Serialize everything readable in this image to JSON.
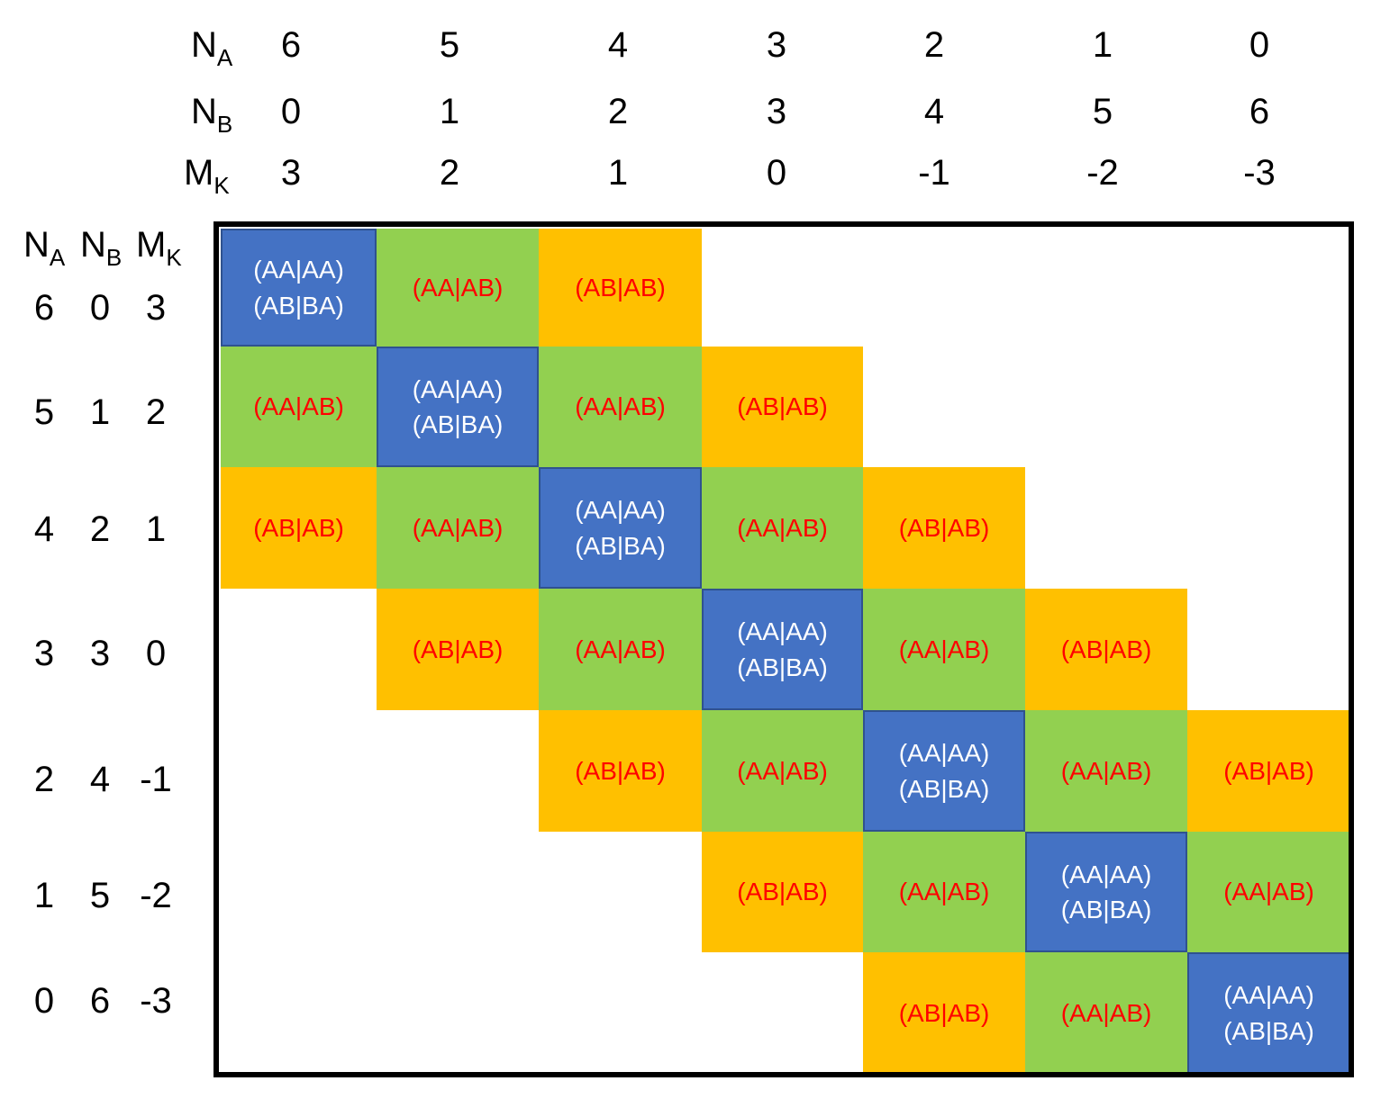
{
  "colors": {
    "diagonal": "#4472c4",
    "first_off_diagonal": "#92d050",
    "second_off_diagonal": "#ffc000",
    "diagonal_text": "#ffffff",
    "off_diagonal_text": "#ff0000"
  },
  "column_header": {
    "labels": [
      {
        "base": "N",
        "sub": "A"
      },
      {
        "base": "N",
        "sub": "B"
      },
      {
        "base": "M",
        "sub": "K"
      }
    ],
    "N_A": [
      "6",
      "5",
      "4",
      "3",
      "2",
      "1",
      "0"
    ],
    "N_B": [
      "0",
      "1",
      "2",
      "3",
      "4",
      "5",
      "6"
    ],
    "M_K": [
      "3",
      "2",
      "1",
      "0",
      "-1",
      "-2",
      "-3"
    ]
  },
  "row_header": {
    "labels": [
      {
        "base": "N",
        "sub": "A"
      },
      {
        "base": "N",
        "sub": "B"
      },
      {
        "base": "M",
        "sub": "K"
      }
    ],
    "rows": [
      {
        "N_A": "6",
        "N_B": "0",
        "M_K": "3"
      },
      {
        "N_A": "5",
        "N_B": "1",
        "M_K": "2"
      },
      {
        "N_A": "4",
        "N_B": "2",
        "M_K": "1"
      },
      {
        "N_A": "3",
        "N_B": "3",
        "M_K": "0"
      },
      {
        "N_A": "2",
        "N_B": "4",
        "M_K": "-1"
      },
      {
        "N_A": "1",
        "N_B": "5",
        "M_K": "-2"
      },
      {
        "N_A": "0",
        "N_B": "6",
        "M_K": "-3"
      }
    ]
  },
  "block_labels": {
    "diagonal": [
      "(AA|AA)",
      "(AB|BA)"
    ],
    "first_off_diagonal": [
      "(AA|AB)"
    ],
    "second_off_diagonal": [
      "(AB|AB)"
    ]
  },
  "blocks": [
    {
      "row": 0,
      "col": 0,
      "kind": "diagonal"
    },
    {
      "row": 0,
      "col": 1,
      "kind": "first_off_diagonal"
    },
    {
      "row": 0,
      "col": 2,
      "kind": "second_off_diagonal"
    },
    {
      "row": 1,
      "col": 0,
      "kind": "first_off_diagonal"
    },
    {
      "row": 1,
      "col": 1,
      "kind": "diagonal"
    },
    {
      "row": 1,
      "col": 2,
      "kind": "first_off_diagonal"
    },
    {
      "row": 1,
      "col": 3,
      "kind": "second_off_diagonal"
    },
    {
      "row": 2,
      "col": 0,
      "kind": "second_off_diagonal"
    },
    {
      "row": 2,
      "col": 1,
      "kind": "first_off_diagonal"
    },
    {
      "row": 2,
      "col": 2,
      "kind": "diagonal"
    },
    {
      "row": 2,
      "col": 3,
      "kind": "first_off_diagonal"
    },
    {
      "row": 2,
      "col": 4,
      "kind": "second_off_diagonal"
    },
    {
      "row": 3,
      "col": 1,
      "kind": "second_off_diagonal"
    },
    {
      "row": 3,
      "col": 2,
      "kind": "first_off_diagonal"
    },
    {
      "row": 3,
      "col": 3,
      "kind": "diagonal"
    },
    {
      "row": 3,
      "col": 4,
      "kind": "first_off_diagonal"
    },
    {
      "row": 3,
      "col": 5,
      "kind": "second_off_diagonal"
    },
    {
      "row": 4,
      "col": 2,
      "kind": "second_off_diagonal"
    },
    {
      "row": 4,
      "col": 3,
      "kind": "first_off_diagonal"
    },
    {
      "row": 4,
      "col": 4,
      "kind": "diagonal"
    },
    {
      "row": 4,
      "col": 5,
      "kind": "first_off_diagonal"
    },
    {
      "row": 4,
      "col": 6,
      "kind": "second_off_diagonal"
    },
    {
      "row": 5,
      "col": 3,
      "kind": "second_off_diagonal"
    },
    {
      "row": 5,
      "col": 4,
      "kind": "first_off_diagonal"
    },
    {
      "row": 5,
      "col": 5,
      "kind": "diagonal"
    },
    {
      "row": 5,
      "col": 6,
      "kind": "first_off_diagonal"
    },
    {
      "row": 6,
      "col": 4,
      "kind": "second_off_diagonal"
    },
    {
      "row": 6,
      "col": 5,
      "kind": "first_off_diagonal"
    },
    {
      "row": 6,
      "col": 6,
      "kind": "diagonal"
    }
  ]
}
